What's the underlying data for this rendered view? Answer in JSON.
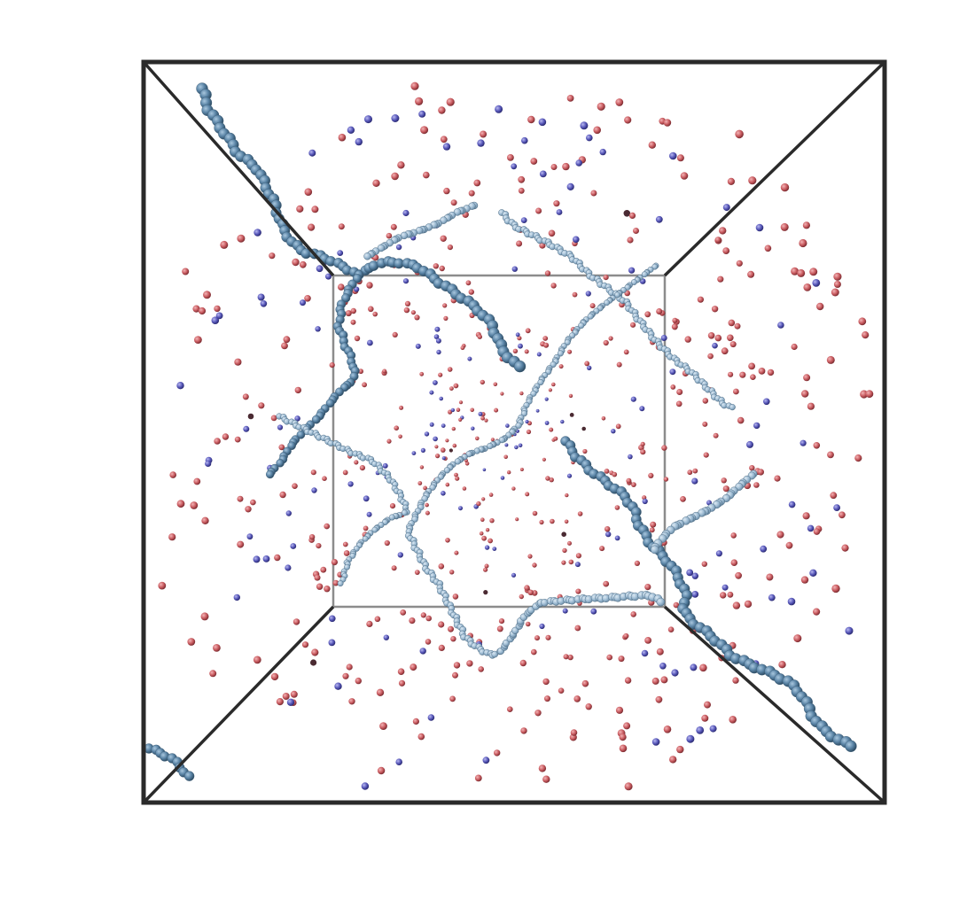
{
  "colors": {
    "background": "#ffffff",
    "box_front": "#2a2a2a",
    "box_back": "#8c8c8c",
    "chain_front": "#5a84a6",
    "chain_back": "#9dbbd3",
    "chain_edge": "#3b5a73",
    "ion_red": "#c85a5f",
    "ion_blue": "#5656b8",
    "ion_dark": "#4a2a32"
  },
  "icons": [
    "simulation-box-wireframe",
    "polymer-chain-beads",
    "ion-particles"
  ]
}
